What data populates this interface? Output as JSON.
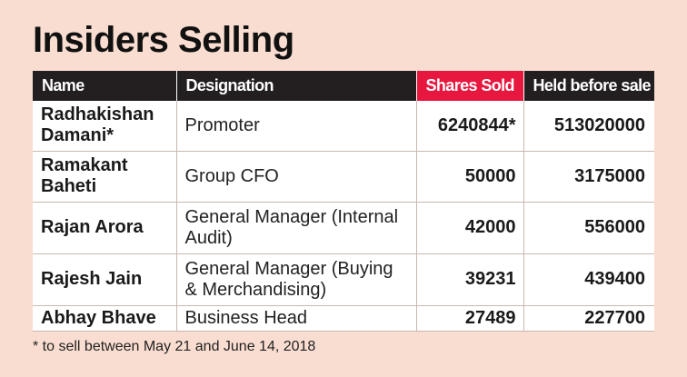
{
  "title": "Insiders Selling",
  "chart_data": {
    "type": "table",
    "columns": [
      "Name",
      "Designation",
      "Shares Sold",
      "Held before sale"
    ],
    "rows": [
      {
        "name": "Radhakishan Damani*",
        "designation": "Promoter",
        "shares_sold": "6240844*",
        "held_before_sale": "513020000"
      },
      {
        "name": "Ramakant Baheti",
        "designation": "Group CFO",
        "shares_sold": "50000",
        "held_before_sale": "3175000"
      },
      {
        "name": "Rajan Arora",
        "designation": "General Manager (Internal Audit)",
        "shares_sold": "42000",
        "held_before_sale": "556000"
      },
      {
        "name": "Rajesh Jain",
        "designation": "General Manager (Buying & Merchandising)",
        "shares_sold": "39231",
        "held_before_sale": "439400"
      },
      {
        "name": "Abhay Bhave",
        "designation": "Business Head",
        "shares_sold": "27489",
        "held_before_sale": "227700"
      }
    ],
    "footnote": "* to sell between May 21 and June 14, 2018"
  },
  "colors": {
    "background": "#f9ddd0",
    "header": "#231f20",
    "highlight_header": "#e8173f"
  }
}
